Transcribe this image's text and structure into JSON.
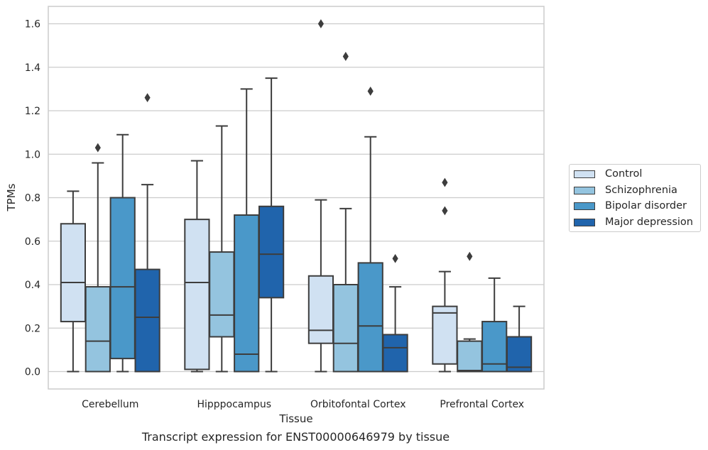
{
  "caption": "Transcript expression for ENST00000646979 by tissue",
  "chart_data": {
    "type": "box",
    "xlabel": "Tissue",
    "ylabel": "TPMs",
    "ylim": [
      -0.08,
      1.68
    ],
    "yticks": [
      "0.0",
      "0.2",
      "0.4",
      "0.6",
      "0.8",
      "1.0",
      "1.2",
      "1.4",
      "1.6"
    ],
    "grid": "horizontal",
    "legend_position": "right",
    "categories": [
      "Cerebellum",
      "Hipppocampus",
      "Orbitofontal Cortex",
      "Prefrontal Cortex"
    ],
    "series": [
      {
        "name": "Control",
        "color": "#d0e1f2",
        "boxes": [
          {
            "whisker_low": 0.0,
            "q1": 0.23,
            "median": 0.41,
            "q3": 0.68,
            "whisker_high": 0.83,
            "outliers": []
          },
          {
            "whisker_low": 0.0,
            "q1": 0.01,
            "median": 0.41,
            "q3": 0.7,
            "whisker_high": 0.97,
            "outliers": []
          },
          {
            "whisker_low": 0.0,
            "q1": 0.13,
            "median": 0.19,
            "q3": 0.44,
            "whisker_high": 0.79,
            "outliers": [
              1.6
            ]
          },
          {
            "whisker_low": 0.0,
            "q1": 0.035,
            "median": 0.27,
            "q3": 0.3,
            "whisker_high": 0.46,
            "outliers": [
              0.74,
              0.87
            ]
          }
        ]
      },
      {
        "name": "Schizophrenia",
        "color": "#94c4df",
        "boxes": [
          {
            "whisker_low": 0.0,
            "q1": 0.0,
            "median": 0.14,
            "q3": 0.39,
            "whisker_high": 0.96,
            "outliers": [
              1.03
            ]
          },
          {
            "whisker_low": 0.0,
            "q1": 0.16,
            "median": 0.26,
            "q3": 0.55,
            "whisker_high": 1.13,
            "outliers": []
          },
          {
            "whisker_low": 0.0,
            "q1": 0.0,
            "median": 0.13,
            "q3": 0.4,
            "whisker_high": 0.75,
            "outliers": [
              1.45
            ]
          },
          {
            "whisker_low": 0.0,
            "q1": 0.0,
            "median": 0.005,
            "q3": 0.14,
            "whisker_high": 0.15,
            "outliers": [
              0.53
            ]
          }
        ]
      },
      {
        "name": "Bipolar disorder",
        "color": "#4a98c9",
        "boxes": [
          {
            "whisker_low": 0.0,
            "q1": 0.06,
            "median": 0.39,
            "q3": 0.8,
            "whisker_high": 1.09,
            "outliers": []
          },
          {
            "whisker_low": 0.0,
            "q1": 0.0,
            "median": 0.08,
            "q3": 0.72,
            "whisker_high": 1.3,
            "outliers": []
          },
          {
            "whisker_low": 0.0,
            "q1": 0.0,
            "median": 0.21,
            "q3": 0.5,
            "whisker_high": 1.08,
            "outliers": [
              1.29
            ]
          },
          {
            "whisker_low": 0.0,
            "q1": 0.0,
            "median": 0.035,
            "q3": 0.23,
            "whisker_high": 0.43,
            "outliers": []
          }
        ]
      },
      {
        "name": "Major depression",
        "color": "#2064ac",
        "boxes": [
          {
            "whisker_low": 0.0,
            "q1": 0.0,
            "median": 0.25,
            "q3": 0.47,
            "whisker_high": 0.86,
            "outliers": [
              1.26
            ]
          },
          {
            "whisker_low": 0.0,
            "q1": 0.34,
            "median": 0.54,
            "q3": 0.76,
            "whisker_high": 1.35,
            "outliers": []
          },
          {
            "whisker_low": 0.0,
            "q1": 0.0,
            "median": 0.11,
            "q3": 0.17,
            "whisker_high": 0.39,
            "outliers": [
              0.52
            ]
          },
          {
            "whisker_low": 0.0,
            "q1": 0.0,
            "median": 0.02,
            "q3": 0.16,
            "whisker_high": 0.3,
            "outliers": []
          }
        ]
      }
    ]
  }
}
